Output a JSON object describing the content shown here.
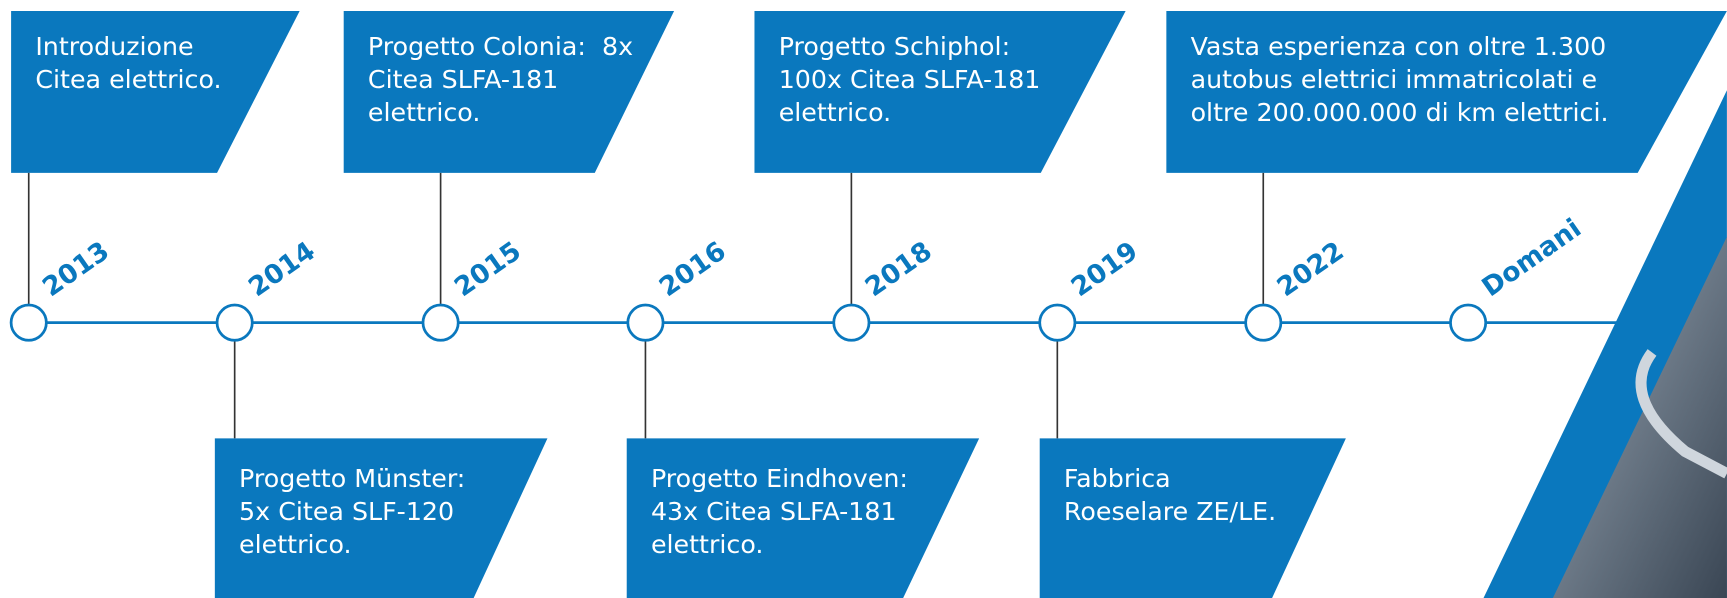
{
  "milestones": [
    {
      "year": "2013",
      "lines": [
        "Introduzione",
        "Citea elettrico."
      ]
    },
    {
      "year": "2014",
      "lines": [
        "Progetto Münster:",
        "5x Citea SLF-120",
        "elettrico."
      ]
    },
    {
      "year": "2015",
      "lines": [
        "Progetto Colonia:  8x",
        "Citea SLFA-181",
        "elettrico."
      ]
    },
    {
      "year": "2016",
      "lines": [
        "Progetto Eindhoven:",
        "43x Citea SLFA-181",
        "elettrico."
      ]
    },
    {
      "year": "2018",
      "lines": [
        "Progetto Schiphol:",
        "100x Citea SLFA-181",
        "elettrico."
      ]
    },
    {
      "year": "2019",
      "lines": [
        "Fabbrica",
        "Roeselare ZE/LE."
      ]
    },
    {
      "year": "2022",
      "lines": [
        "Vasta esperienza con oltre 1.300",
        "autobus elettrici immatricolati e",
        "oltre 200.000.000 di km elettrici."
      ]
    }
  ],
  "end_label": "Domani"
}
